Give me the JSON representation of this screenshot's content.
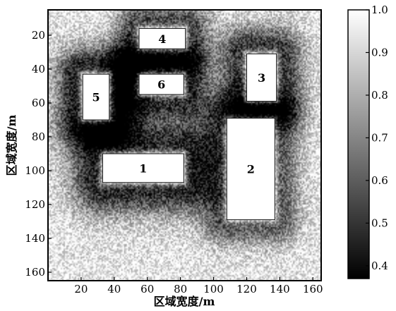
{
  "chart_data": {
    "type": "heatmap",
    "title": "",
    "xlabel": "区域宽度/m",
    "ylabel": "区域宽度/m",
    "xlim": [
      0,
      165
    ],
    "ylim": [
      165,
      5
    ],
    "x_ticks": [
      20,
      40,
      60,
      80,
      100,
      120,
      140,
      160
    ],
    "y_ticks": [
      20,
      40,
      60,
      80,
      100,
      120,
      140,
      160
    ],
    "colorbar": {
      "range": [
        0.37,
        1.0
      ],
      "ticks": [
        "1.0",
        "0.9",
        "0.8",
        "0.7",
        "0.6",
        "0.5",
        "0.4"
      ],
      "tick_values": [
        1.0,
        0.9,
        0.8,
        0.7,
        0.6,
        0.5,
        0.4
      ],
      "colormap": "gray"
    },
    "background_value": 0.95,
    "regions": [
      {
        "label": "1",
        "x0": 33,
        "x1": 82,
        "y0": 90,
        "y1": 107,
        "value": 1.0,
        "halo_depth": 0.58,
        "halo_spread": 13
      },
      {
        "label": "2",
        "x0": 108,
        "x1": 137,
        "y0": 69,
        "y1": 129,
        "value": 1.0,
        "halo_depth": 0.45,
        "halo_spread": 10
      },
      {
        "label": "3",
        "x0": 120,
        "x1": 138,
        "y0": 31,
        "y1": 59,
        "value": 1.0,
        "halo_depth": 0.55,
        "halo_spread": 11
      },
      {
        "label": "4",
        "x0": 55,
        "x1": 83,
        "y0": 16,
        "y1": 28,
        "value": 1.0,
        "halo_depth": 0.5,
        "halo_spread": 10
      },
      {
        "label": "5",
        "x0": 21,
        "x1": 37,
        "y0": 43,
        "y1": 70,
        "value": 1.0,
        "halo_depth": 0.62,
        "halo_spread": 11
      },
      {
        "label": "6",
        "x0": 55,
        "x1": 82,
        "y0": 43,
        "y1": 55,
        "value": 1.0,
        "halo_depth": 0.55,
        "halo_spread": 10
      }
    ]
  }
}
